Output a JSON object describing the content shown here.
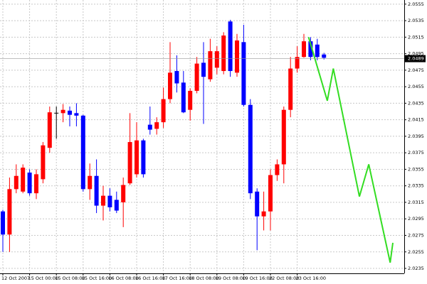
{
  "chart_data": {
    "type": "candlestick",
    "categories": [
      "12 Oct 2007",
      null,
      null,
      null,
      "15 Oct 00:00",
      null,
      null,
      null,
      "15 Oct 08:00",
      null,
      null,
      null,
      "15 Oct 16:00",
      null,
      null,
      null,
      "16 Oct 08:00",
      null,
      null,
      null,
      "16 Oct 16:00",
      null,
      null,
      null,
      "17 Oct 16:00",
      null,
      null,
      null,
      "18 Oct 08:00",
      null,
      null,
      null,
      "19 Oct 08:00",
      null,
      null,
      null,
      "19 Oct 16:00",
      null,
      null,
      null,
      "22 Oct 08:00",
      null,
      null,
      null,
      "23 Oct 16:00",
      null,
      null,
      null,
      null
    ],
    "open": [
      2.0304,
      2.0276,
      2.0331,
      2.0328,
      2.0351,
      2.0326,
      2.0343,
      2.0381,
      2.0423,
      2.0423,
      2.0426,
      2.0423,
      2.042,
      2.0331,
      2.0347,
      2.0311,
      2.0323,
      2.0318,
      2.0315,
      2.0338,
      2.0349,
      2.039,
      2.0409,
      2.0404,
      2.0412,
      2.044,
      2.0474,
      2.046,
      2.0427,
      2.045,
      2.0484,
      2.0464,
      2.0478,
      2.0474,
      2.0534,
      2.0472,
      2.0509,
      2.0433,
      2.0328,
      2.0298,
      2.0304,
      2.0348,
      2.0361,
      2.0427,
      2.0477,
      2.0491,
      2.051,
      2.0506,
      2.0494
    ],
    "high": [
      2.0306,
      2.0345,
      2.0361,
      2.0361,
      2.0355,
      2.0355,
      2.0388,
      2.0431,
      2.0431,
      2.0434,
      2.0431,
      2.0435,
      2.0421,
      2.0362,
      2.0367,
      2.0335,
      2.0332,
      2.0328,
      2.0345,
      2.0423,
      2.0412,
      2.0392,
      2.0431,
      2.0418,
      2.0454,
      2.0509,
      2.0493,
      2.0474,
      2.0453,
      2.0491,
      2.0509,
      2.0513,
      2.0504,
      2.0521,
      2.0536,
      2.0519,
      2.053,
      2.044,
      2.0332,
      2.0328,
      2.0355,
      2.0367,
      2.0431,
      2.0491,
      2.0504,
      2.0519,
      2.0515,
      2.0513,
      2.0496
    ],
    "low": [
      2.0255,
      2.0255,
      2.0326,
      2.0326,
      2.0323,
      2.0319,
      2.0338,
      2.0375,
      2.0392,
      2.0412,
      2.0407,
      2.0407,
      2.0328,
      2.0318,
      2.0302,
      2.0293,
      2.0304,
      2.0302,
      2.0285,
      2.0336,
      2.0345,
      2.0345,
      2.0397,
      2.0397,
      2.0405,
      2.0435,
      2.0448,
      2.0423,
      2.0414,
      2.0447,
      2.041,
      2.0461,
      2.047,
      2.047,
      2.0467,
      2.0467,
      2.0431,
      2.0319,
      2.0257,
      2.0281,
      2.0281,
      2.0341,
      2.0338,
      2.0418,
      2.0472,
      2.049,
      2.0487,
      2.0487,
      2.0488
    ],
    "close": [
      2.0276,
      2.0331,
      2.0347,
      2.0357,
      2.0326,
      2.0349,
      2.0384,
      2.0424,
      2.0423,
      2.0427,
      2.0421,
      2.042,
      2.0331,
      2.0347,
      2.0311,
      2.0323,
      2.0309,
      2.0305,
      2.0336,
      2.0388,
      2.039,
      2.0349,
      2.0403,
      2.0412,
      2.044,
      2.0472,
      2.0459,
      2.0424,
      2.045,
      2.0483,
      2.0467,
      2.0498,
      2.0498,
      2.0517,
      2.0474,
      2.0511,
      2.0433,
      2.0326,
      2.0298,
      2.0304,
      2.0348,
      2.0361,
      2.0427,
      2.0477,
      2.0491,
      2.051,
      2.0491,
      2.0491,
      2.049
    ],
    "up_color": "#ff0000",
    "down_color": "#0000ff",
    "forecast": {
      "color": "#33dd22",
      "x": [
        45.7,
        48.5,
        49.4,
        53.3,
        54.7,
        57.9,
        58.3
      ],
      "values": [
        2.0515,
        2.0438,
        2.0477,
        2.0322,
        2.0361,
        2.0242,
        2.0266
      ]
    },
    "last_price": 2.0489,
    "ylim": [
      2.0229,
      2.056
    ],
    "yticks": [
      2.0235,
      2.0255,
      2.0275,
      2.0295,
      2.0315,
      2.0335,
      2.0355,
      2.0375,
      2.0395,
      2.0415,
      2.0435,
      2.0455,
      2.0475,
      2.0495,
      2.0515,
      2.0535,
      2.0555
    ],
    "grid": true
  }
}
